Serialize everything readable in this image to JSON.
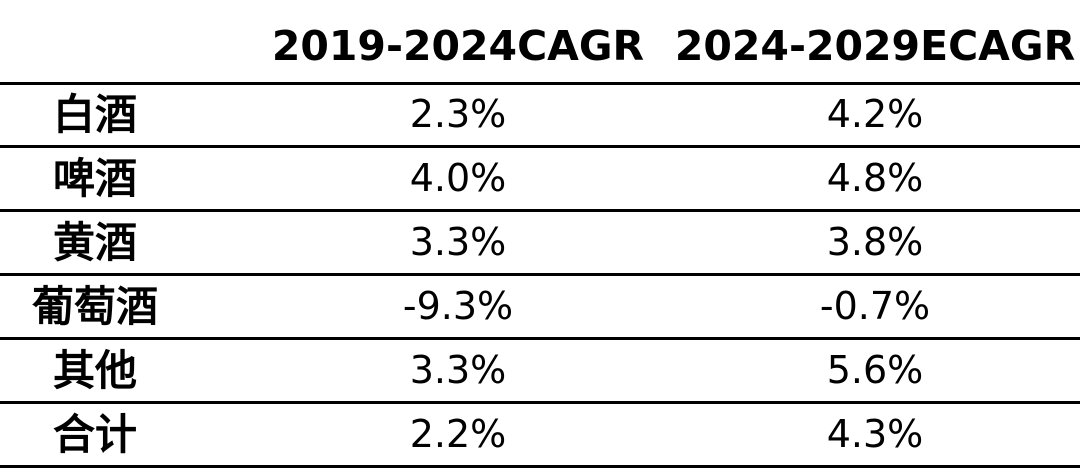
{
  "chart_data": {
    "type": "table",
    "columns": [
      "",
      "2019-2024CAGR",
      "2024-2029ECAGR"
    ],
    "rows": [
      {
        "label": "白酒",
        "values": [
          "2.3%",
          "4.2%"
        ]
      },
      {
        "label": "啤酒",
        "values": [
          "4.0%",
          "4.8%"
        ]
      },
      {
        "label": "黄酒",
        "values": [
          "3.3%",
          "3.8%"
        ]
      },
      {
        "label": "葡萄酒",
        "values": [
          "-9.3%",
          "-0.7%"
        ]
      },
      {
        "label": "其他",
        "values": [
          "3.3%",
          "5.6%"
        ]
      },
      {
        "label": "合计",
        "values": [
          "2.2%",
          "4.3%"
        ]
      }
    ]
  }
}
